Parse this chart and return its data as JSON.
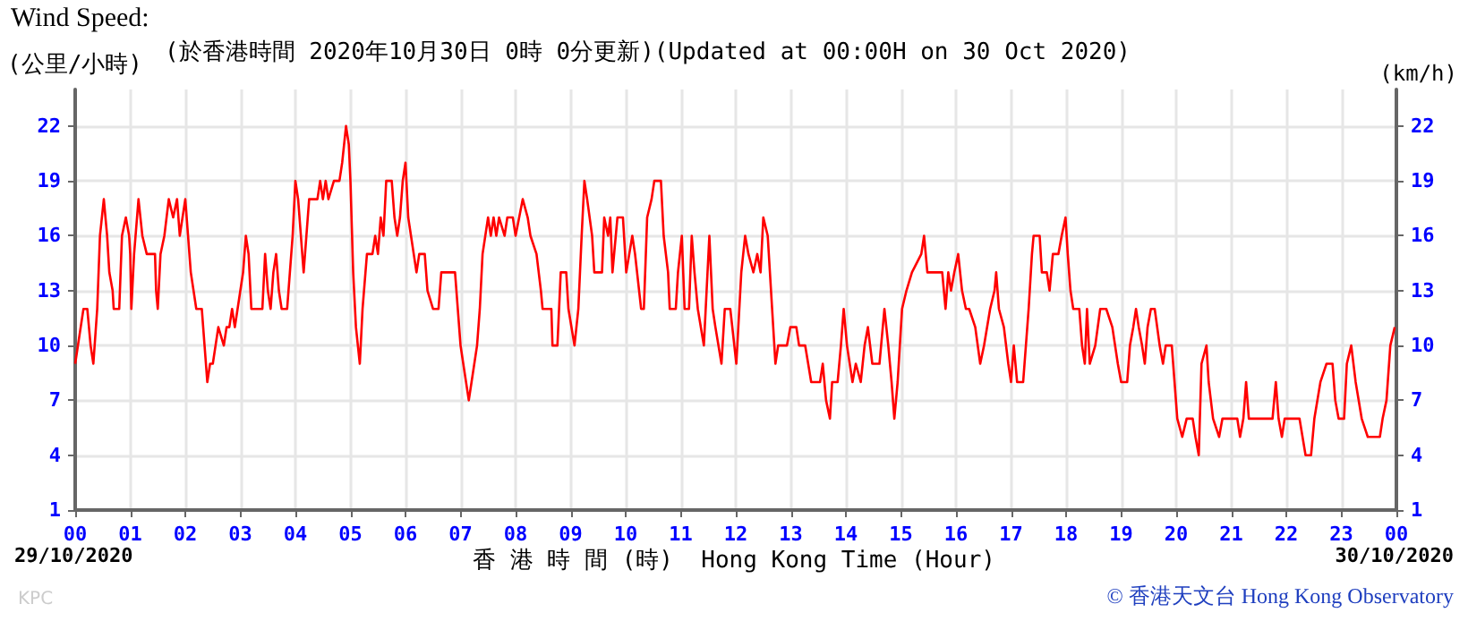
{
  "chart_data": {
    "type": "line",
    "title": "Wind Speed:",
    "subtitle": "(於香港時間 2020年10月30日 0時 0分更新)(Updated at 00:00H on 30 Oct 2020)",
    "ylabel": "(公里/小時)",
    "y2label": "(km/h)",
    "xlabel": "香 港 時 間 (時)  Hong Kong Time (Hour)",
    "annotations": [
      "29/10/2020",
      "30/10/2020",
      "© 香港天文台 Hong Kong Observatory",
      "KPC"
    ],
    "x": [
      0,
      0.05,
      0.15,
      0.22,
      0.28,
      0.33,
      0.4,
      0.45,
      0.52,
      0.58,
      0.62,
      0.68,
      0.7,
      0.8,
      0.85,
      0.92,
      0.98,
      1.0,
      1.02,
      1.07,
      1.15,
      1.22,
      1.3,
      1.45,
      1.47,
      1.5,
      1.55,
      1.62,
      1.7,
      1.78,
      1.85,
      1.9,
      1.95,
      2.0,
      2.05,
      2.1,
      2.15,
      2.2,
      2.3,
      2.35,
      2.4,
      2.45,
      2.5,
      2.6,
      2.7,
      2.75,
      2.8,
      2.85,
      2.9,
      2.95,
      3.0,
      3.05,
      3.1,
      3.15,
      3.2,
      3.4,
      3.45,
      3.5,
      3.55,
      3.6,
      3.65,
      3.7,
      3.75,
      3.85,
      3.9,
      3.95,
      4.0,
      4.05,
      4.1,
      4.15,
      4.2,
      4.25,
      4.4,
      4.45,
      4.5,
      4.55,
      4.6,
      4.7,
      4.8,
      4.85,
      4.92,
      4.97,
      5.0,
      5.05,
      5.1,
      5.17,
      5.22,
      5.3,
      5.4,
      5.45,
      5.5,
      5.55,
      5.6,
      5.65,
      5.75,
      5.8,
      5.85,
      5.9,
      5.95,
      6.0,
      6.05,
      6.1,
      6.15,
      6.2,
      6.25,
      6.35,
      6.4,
      6.5,
      6.6,
      6.65,
      6.75,
      6.9,
      6.95,
      7.0,
      7.1,
      7.15,
      7.2,
      7.3,
      7.35,
      7.4,
      7.45,
      7.5,
      7.55,
      7.6,
      7.65,
      7.7,
      7.8,
      7.85,
      7.95,
      8.0,
      8.13,
      8.22,
      8.27,
      8.38,
      8.46,
      8.49,
      8.65,
      8.67,
      8.76,
      8.82,
      8.92,
      8.96,
      9.07,
      9.14,
      9.2,
      9.25,
      9.3,
      9.39,
      9.43,
      9.57,
      9.61,
      9.68,
      9.72,
      9.76,
      9.85,
      9.95,
      10.01,
      10.12,
      10.17,
      10.28,
      10.33,
      10.39,
      10.47,
      10.52,
      10.64,
      10.69,
      10.77,
      10.8,
      10.91,
      10.95,
      11.02,
      11.07,
      11.15,
      11.2,
      11.25,
      11.31,
      11.42,
      11.47,
      11.52,
      11.58,
      11.63,
      11.74,
      11.8,
      11.9,
      12.01,
      12.1,
      12.17,
      12.23,
      12.32,
      12.39,
      12.45,
      12.5,
      12.58,
      12.66,
      12.72,
      12.77,
      12.93,
      12.99,
      13.1,
      13.15,
      13.26,
      13.37,
      13.53,
      13.58,
      13.64,
      13.71,
      13.75,
      13.85,
      13.91,
      13.96,
      14.02,
      14.12,
      14.18,
      14.27,
      14.34,
      14.4,
      14.48,
      14.61,
      14.7,
      14.77,
      14.83,
      14.88,
      14.94,
      15.02,
      15.1,
      15.2,
      15.37,
      15.42,
      15.48,
      15.75,
      15.81,
      15.86,
      15.91,
      15.97,
      16.04,
      16.11,
      16.18,
      16.24,
      16.35,
      16.44,
      16.51,
      16.62,
      16.7,
      16.73,
      16.78,
      16.87,
      16.95,
      17.0,
      17.05,
      17.11,
      17.22,
      17.27,
      17.32,
      17.38,
      17.41,
      17.52,
      17.56,
      17.65,
      17.7,
      17.76,
      17.86,
      17.92,
      17.99,
      18.03,
      18.08,
      18.13,
      18.24,
      18.29,
      18.34,
      18.38,
      18.43,
      18.53,
      18.62,
      18.73,
      18.84,
      18.94,
      19.0,
      19.11,
      19.16,
      19.22,
      19.27,
      19.32,
      19.38,
      19.43,
      19.48,
      19.54,
      19.61,
      19.7,
      19.76,
      19.81,
      19.92,
      19.97,
      20.02,
      20.11,
      20.19,
      20.3,
      20.35,
      20.41,
      20.46,
      20.55,
      20.59,
      20.67,
      20.78,
      20.84,
      21.11,
      21.16,
      21.22,
      21.27,
      21.32,
      21.75,
      21.81,
      21.86,
      21.92,
      21.97,
      22.24,
      22.35,
      22.45,
      22.51,
      22.62,
      22.73,
      22.84,
      22.89,
      22.95,
      23.05,
      23.1,
      23.18,
      23.26,
      23.37,
      23.48,
      23.7,
      23.75,
      23.82,
      23.89,
      23.97
    ],
    "series": [
      {
        "color": "#ff0000",
        "values": [
          9,
          10,
          12,
          12,
          10,
          9,
          12,
          16,
          18,
          16,
          14,
          13,
          12,
          12,
          16,
          17,
          16,
          15,
          12,
          15,
          18,
          16,
          15,
          15,
          13,
          12,
          15,
          16,
          18,
          17,
          18,
          16,
          17,
          18,
          16,
          14,
          13,
          12,
          12,
          10,
          8,
          9,
          9,
          11,
          10,
          11,
          11,
          12,
          11,
          12,
          13,
          14,
          16,
          15,
          12,
          12,
          15,
          13,
          12,
          14,
          15,
          13,
          12,
          12,
          14,
          16,
          19,
          18,
          16,
          14,
          16,
          18,
          18,
          19,
          18,
          19,
          18,
          19,
          19,
          20,
          22,
          21,
          19,
          14,
          11,
          9,
          12,
          15,
          15,
          16,
          15,
          17,
          16,
          19,
          19,
          17,
          16,
          17,
          19,
          20,
          17,
          16,
          15,
          14,
          15,
          15,
          13,
          12,
          12,
          14,
          14,
          14,
          12,
          10,
          8,
          7,
          8,
          10,
          12,
          15,
          16,
          17,
          16,
          17,
          16,
          17,
          16,
          17,
          17,
          16,
          18,
          17,
          16,
          15,
          13,
          12,
          12,
          10,
          10,
          14,
          14,
          12,
          10,
          12,
          16,
          19,
          18,
          16,
          14,
          14,
          17,
          16,
          17,
          14,
          17,
          17,
          14,
          16,
          15,
          12,
          12,
          17,
          18,
          19,
          19,
          16,
          14,
          12,
          12,
          14,
          16,
          12,
          12,
          16,
          14,
          12,
          10,
          13,
          16,
          12,
          11,
          9,
          12,
          12,
          9,
          14,
          16,
          15,
          14,
          15,
          14,
          17,
          16,
          12,
          9,
          10,
          10,
          11,
          11,
          10,
          10,
          8,
          8,
          9,
          7,
          6,
          8,
          8,
          10,
          12,
          10,
          8,
          9,
          8,
          10,
          11,
          9,
          9,
          12,
          10,
          8,
          6,
          8,
          12,
          13,
          14,
          15,
          16,
          14,
          14,
          12,
          14,
          13,
          14,
          15,
          13,
          12,
          12,
          11,
          9,
          10,
          12,
          13,
          14,
          12,
          11,
          9,
          8,
          10,
          8,
          8,
          10,
          12,
          15,
          16,
          16,
          14,
          14,
          13,
          15,
          15,
          16,
          17,
          15,
          13,
          12,
          12,
          10,
          9,
          12,
          9,
          10,
          12,
          12,
          11,
          9,
          8,
          8,
          10,
          11,
          12,
          11,
          10,
          9,
          11,
          12,
          12,
          10,
          9,
          10,
          10,
          8,
          6,
          5,
          6,
          6,
          5,
          4,
          9,
          10,
          8,
          6,
          5,
          6,
          6,
          5,
          6,
          8,
          6,
          6,
          8,
          6,
          5,
          6,
          6,
          4,
          4,
          6,
          8,
          9,
          9,
          7,
          6,
          6,
          9,
          10,
          8,
          6,
          5,
          5,
          6,
          7,
          10,
          11
        ]
      }
    ],
    "xlim": [
      0,
      24
    ],
    "xticks": [
      {
        "value": 0,
        "label": "00"
      },
      {
        "value": 1,
        "label": "01"
      },
      {
        "value": 2,
        "label": "02"
      },
      {
        "value": 3,
        "label": "03"
      },
      {
        "value": 4,
        "label": "04"
      },
      {
        "value": 5,
        "label": "05"
      },
      {
        "value": 6,
        "label": "06"
      },
      {
        "value": 7,
        "label": "07"
      },
      {
        "value": 8,
        "label": "08"
      },
      {
        "value": 9,
        "label": "09"
      },
      {
        "value": 10,
        "label": "10"
      },
      {
        "value": 11,
        "label": "11"
      },
      {
        "value": 12,
        "label": "12"
      },
      {
        "value": 13,
        "label": "13"
      },
      {
        "value": 14,
        "label": "14"
      },
      {
        "value": 15,
        "label": "15"
      },
      {
        "value": 16,
        "label": "16"
      },
      {
        "value": 17,
        "label": "17"
      },
      {
        "value": 18,
        "label": "18"
      },
      {
        "value": 19,
        "label": "19"
      },
      {
        "value": 20,
        "label": "20"
      },
      {
        "value": 21,
        "label": "21"
      },
      {
        "value": 22,
        "label": "22"
      },
      {
        "value": 23,
        "label": "23"
      },
      {
        "value": 24,
        "label": "00"
      }
    ],
    "ylim": [
      1,
      24
    ],
    "yticks": [
      1,
      4,
      7,
      10,
      13,
      16,
      19,
      22
    ],
    "y2lim": [
      1,
      24
    ],
    "y2ticks": [
      1,
      4,
      7,
      10,
      13,
      16,
      19,
      22
    ],
    "grid": true,
    "marker": "none",
    "line_style": "solid"
  }
}
